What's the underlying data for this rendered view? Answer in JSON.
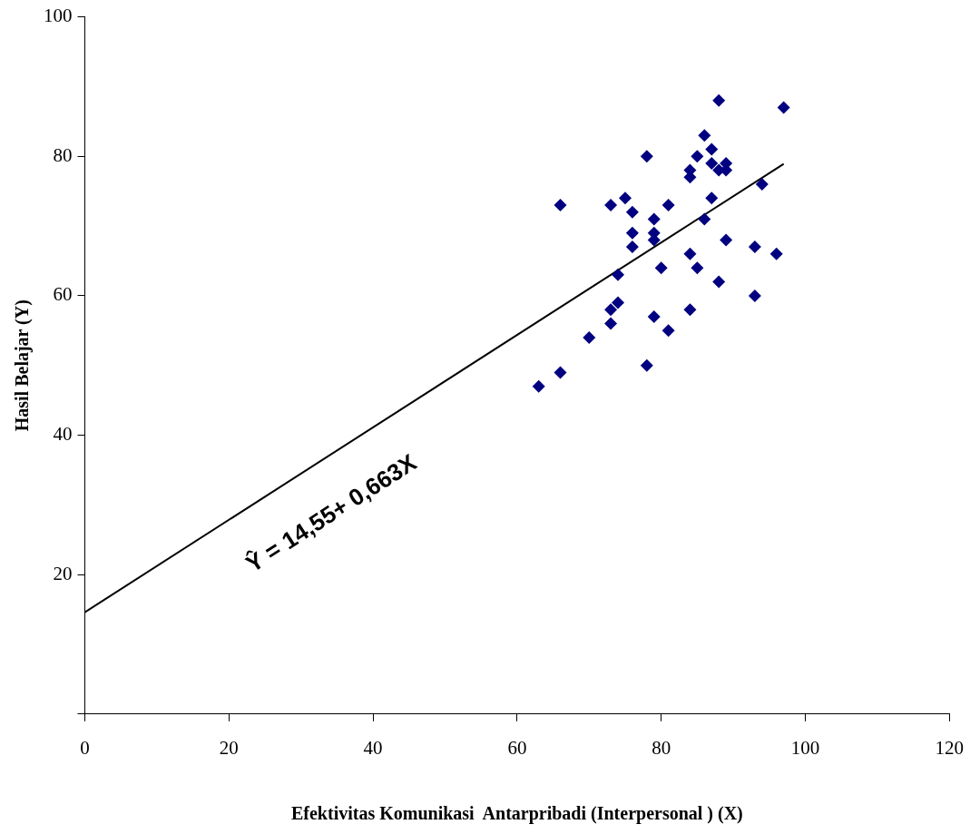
{
  "chart_data": {
    "type": "scatter",
    "xlabel": "Efektivitas Komunikasi  Antarpribadi (Interpersonal ) (X)",
    "ylabel": "Hasil Belajar (Y)",
    "xlim": [
      0,
      120
    ],
    "xticks": [
      0,
      20,
      40,
      60,
      80,
      100,
      120
    ],
    "ylim": [
      0,
      100
    ],
    "yticks": [
      {
        "value": 0,
        "label": null
      },
      20,
      40,
      60,
      80,
      100
    ],
    "grid": false,
    "legend": false,
    "marker": "diamond",
    "annotations": [
      "Ŷ = 14,55+ 0,663X"
    ],
    "series": [
      {
        "color": "#000080",
        "x": [
          63,
          66,
          66,
          70,
          73,
          73,
          73,
          74,
          74,
          75,
          76,
          76,
          76,
          78,
          78,
          79,
          79,
          79,
          79,
          80,
          81,
          81,
          84,
          84,
          84,
          84,
          85,
          85,
          86,
          86,
          87,
          87,
          87,
          88,
          88,
          88,
          89,
          89,
          89,
          93,
          93,
          94,
          96,
          97
        ],
        "values": [
          47,
          49,
          73,
          54,
          73,
          58,
          56,
          59,
          63,
          74,
          72,
          69,
          67,
          80,
          50,
          71,
          69,
          68,
          57,
          64,
          73,
          55,
          78,
          77,
          66,
          58,
          80,
          64,
          83,
          71,
          81,
          79,
          74,
          88,
          78,
          62,
          79,
          78,
          68,
          67,
          60,
          76,
          66,
          87
        ]
      },
      {
        "type": "line",
        "color": "#000000",
        "line_style": "solid",
        "marker": "none",
        "x": [
          0,
          97
        ],
        "values": [
          14.6,
          78.9
        ]
      }
    ]
  }
}
